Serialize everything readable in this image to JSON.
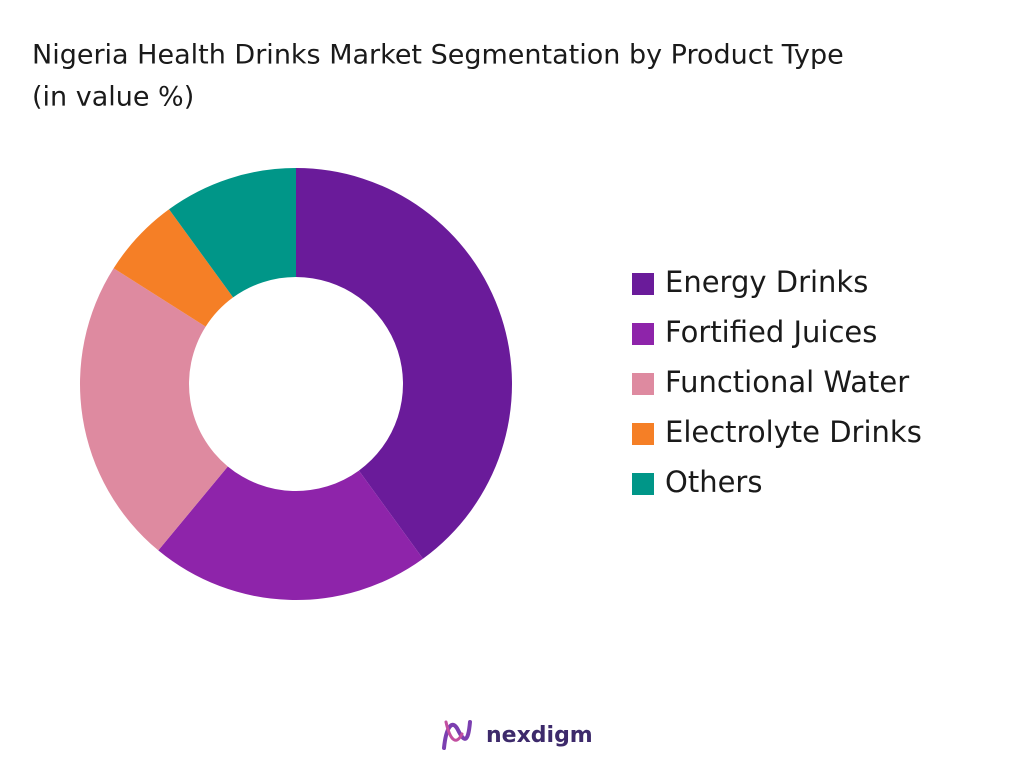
{
  "chart_data": {
    "type": "donut",
    "title": "Nigeria Health Drinks Market Segmentation by Product Type",
    "subtitle": "(in value %)",
    "categories": [
      "Energy Drinks",
      "Fortified Juices",
      "Functional Water",
      "Electrolyte Drinks",
      "Others"
    ],
    "values": [
      40,
      21,
      23,
      6,
      10
    ],
    "colors": [
      "#6a1b9a",
      "#8e24aa",
      "#de8aa0",
      "#f57f26",
      "#009688"
    ],
    "legend": "right",
    "brand": "nexdigm"
  }
}
